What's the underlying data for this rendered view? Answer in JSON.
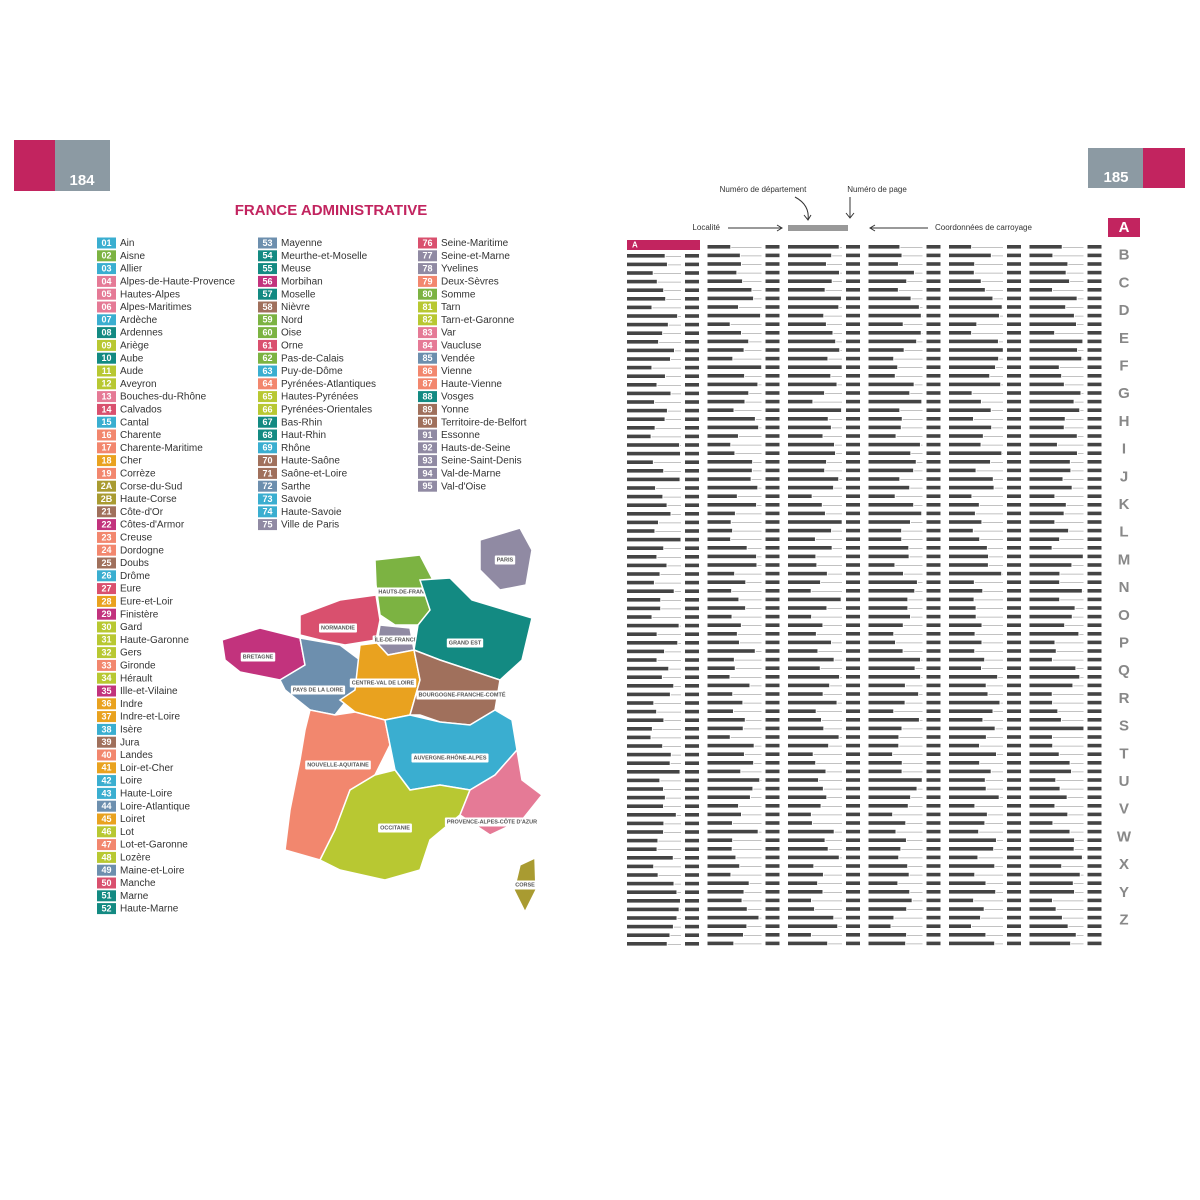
{
  "left_page": {
    "page_number": "184",
    "title": "FRANCE ADMINISTRATIVE",
    "departments": [
      {
        "code": "01",
        "name": "Ain",
        "color": "#3aaed0"
      },
      {
        "code": "02",
        "name": "Aisne",
        "color": "#7cb342"
      },
      {
        "code": "03",
        "name": "Allier",
        "color": "#3aaed0"
      },
      {
        "code": "04",
        "name": "Alpes-de-Haute-Provence",
        "color": "#e57a96"
      },
      {
        "code": "05",
        "name": "Hautes-Alpes",
        "color": "#e57a96"
      },
      {
        "code": "06",
        "name": "Alpes-Maritimes",
        "color": "#e57a96"
      },
      {
        "code": "07",
        "name": "Ardèche",
        "color": "#3aaed0"
      },
      {
        "code": "08",
        "name": "Ardennes",
        "color": "#138a82"
      },
      {
        "code": "09",
        "name": "Ariège",
        "color": "#b8c832"
      },
      {
        "code": "10",
        "name": "Aube",
        "color": "#138a82"
      },
      {
        "code": "11",
        "name": "Aude",
        "color": "#b8c832"
      },
      {
        "code": "12",
        "name": "Aveyron",
        "color": "#b8c832"
      },
      {
        "code": "13",
        "name": "Bouches-du-Rhône",
        "color": "#e57a96"
      },
      {
        "code": "14",
        "name": "Calvados",
        "color": "#d9506e"
      },
      {
        "code": "15",
        "name": "Cantal",
        "color": "#3aaed0"
      },
      {
        "code": "16",
        "name": "Charente",
        "color": "#f2876e"
      },
      {
        "code": "17",
        "name": "Charente-Maritime",
        "color": "#f2876e"
      },
      {
        "code": "18",
        "name": "Cher",
        "color": "#e9a21f"
      },
      {
        "code": "19",
        "name": "Corrèze",
        "color": "#f2876e"
      },
      {
        "code": "2A",
        "name": "Corse-du-Sud",
        "color": "#a99b31"
      },
      {
        "code": "2B",
        "name": "Haute-Corse",
        "color": "#a99b31"
      },
      {
        "code": "21",
        "name": "Côte-d'Or",
        "color": "#a0705c"
      },
      {
        "code": "22",
        "name": "Côtes-d'Armor",
        "color": "#c2337d"
      },
      {
        "code": "23",
        "name": "Creuse",
        "color": "#f2876e"
      },
      {
        "code": "24",
        "name": "Dordogne",
        "color": "#f2876e"
      },
      {
        "code": "25",
        "name": "Doubs",
        "color": "#a0705c"
      },
      {
        "code": "26",
        "name": "Drôme",
        "color": "#3aaed0"
      },
      {
        "code": "27",
        "name": "Eure",
        "color": "#d9506e"
      },
      {
        "code": "28",
        "name": "Eure-et-Loir",
        "color": "#e9a21f"
      },
      {
        "code": "29",
        "name": "Finistère",
        "color": "#c2337d"
      },
      {
        "code": "30",
        "name": "Gard",
        "color": "#b8c832"
      },
      {
        "code": "31",
        "name": "Haute-Garonne",
        "color": "#b8c832"
      },
      {
        "code": "32",
        "name": "Gers",
        "color": "#b8c832"
      },
      {
        "code": "33",
        "name": "Gironde",
        "color": "#f2876e"
      },
      {
        "code": "34",
        "name": "Hérault",
        "color": "#b8c832"
      },
      {
        "code": "35",
        "name": "Ille-et-Vilaine",
        "color": "#c2337d"
      },
      {
        "code": "36",
        "name": "Indre",
        "color": "#e9a21f"
      },
      {
        "code": "37",
        "name": "Indre-et-Loire",
        "color": "#e9a21f"
      },
      {
        "code": "38",
        "name": "Isère",
        "color": "#3aaed0"
      },
      {
        "code": "39",
        "name": "Jura",
        "color": "#a0705c"
      },
      {
        "code": "40",
        "name": "Landes",
        "color": "#f2876e"
      },
      {
        "code": "41",
        "name": "Loir-et-Cher",
        "color": "#e9a21f"
      },
      {
        "code": "42",
        "name": "Loire",
        "color": "#3aaed0"
      },
      {
        "code": "43",
        "name": "Haute-Loire",
        "color": "#3aaed0"
      },
      {
        "code": "44",
        "name": "Loire-Atlantique",
        "color": "#6d8fae"
      },
      {
        "code": "45",
        "name": "Loiret",
        "color": "#e9a21f"
      },
      {
        "code": "46",
        "name": "Lot",
        "color": "#b8c832"
      },
      {
        "code": "47",
        "name": "Lot-et-Garonne",
        "color": "#f2876e"
      },
      {
        "code": "48",
        "name": "Lozère",
        "color": "#b8c832"
      },
      {
        "code": "49",
        "name": "Maine-et-Loire",
        "color": "#6d8fae"
      },
      {
        "code": "50",
        "name": "Manche",
        "color": "#d9506e"
      },
      {
        "code": "51",
        "name": "Marne",
        "color": "#138a82"
      },
      {
        "code": "52",
        "name": "Haute-Marne",
        "color": "#138a82"
      },
      {
        "code": "53",
        "name": "Mayenne",
        "color": "#6d8fae"
      },
      {
        "code": "54",
        "name": "Meurthe-et-Moselle",
        "color": "#138a82"
      },
      {
        "code": "55",
        "name": "Meuse",
        "color": "#138a82"
      },
      {
        "code": "56",
        "name": "Morbihan",
        "color": "#c2337d"
      },
      {
        "code": "57",
        "name": "Moselle",
        "color": "#138a82"
      },
      {
        "code": "58",
        "name": "Nièvre",
        "color": "#a0705c"
      },
      {
        "code": "59",
        "name": "Nord",
        "color": "#7cb342"
      },
      {
        "code": "60",
        "name": "Oise",
        "color": "#7cb342"
      },
      {
        "code": "61",
        "name": "Orne",
        "color": "#d9506e"
      },
      {
        "code": "62",
        "name": "Pas-de-Calais",
        "color": "#7cb342"
      },
      {
        "code": "63",
        "name": "Puy-de-Dôme",
        "color": "#3aaed0"
      },
      {
        "code": "64",
        "name": "Pyrénées-Atlantiques",
        "color": "#f2876e"
      },
      {
        "code": "65",
        "name": "Hautes-Pyrénées",
        "color": "#b8c832"
      },
      {
        "code": "66",
        "name": "Pyrénées-Orientales",
        "color": "#b8c832"
      },
      {
        "code": "67",
        "name": "Bas-Rhin",
        "color": "#138a82"
      },
      {
        "code": "68",
        "name": "Haut-Rhin",
        "color": "#138a82"
      },
      {
        "code": "69",
        "name": "Rhône",
        "color": "#3aaed0"
      },
      {
        "code": "70",
        "name": "Haute-Saône",
        "color": "#a0705c"
      },
      {
        "code": "71",
        "name": "Saône-et-Loire",
        "color": "#a0705c"
      },
      {
        "code": "72",
        "name": "Sarthe",
        "color": "#6d8fae"
      },
      {
        "code": "73",
        "name": "Savoie",
        "color": "#3aaed0"
      },
      {
        "code": "74",
        "name": "Haute-Savoie",
        "color": "#3aaed0"
      },
      {
        "code": "75",
        "name": "Ville de Paris",
        "color": "#908aa3"
      },
      {
        "code": "76",
        "name": "Seine-Maritime",
        "color": "#d9506e"
      },
      {
        "code": "77",
        "name": "Seine-et-Marne",
        "color": "#908aa3"
      },
      {
        "code": "78",
        "name": "Yvelines",
        "color": "#908aa3"
      },
      {
        "code": "79",
        "name": "Deux-Sèvres",
        "color": "#f2876e"
      },
      {
        "code": "80",
        "name": "Somme",
        "color": "#7cb342"
      },
      {
        "code": "81",
        "name": "Tarn",
        "color": "#b8c832"
      },
      {
        "code": "82",
        "name": "Tarn-et-Garonne",
        "color": "#b8c832"
      },
      {
        "code": "83",
        "name": "Var",
        "color": "#e57a96"
      },
      {
        "code": "84",
        "name": "Vaucluse",
        "color": "#e57a96"
      },
      {
        "code": "85",
        "name": "Vendée",
        "color": "#6d8fae"
      },
      {
        "code": "86",
        "name": "Vienne",
        "color": "#f2876e"
      },
      {
        "code": "87",
        "name": "Haute-Vienne",
        "color": "#f2876e"
      },
      {
        "code": "88",
        "name": "Vosges",
        "color": "#138a82"
      },
      {
        "code": "89",
        "name": "Yonne",
        "color": "#a0705c"
      },
      {
        "code": "90",
        "name": "Territoire-de-Belfort",
        "color": "#a0705c"
      },
      {
        "code": "91",
        "name": "Essonne",
        "color": "#908aa3"
      },
      {
        "code": "92",
        "name": "Hauts-de-Seine",
        "color": "#908aa3"
      },
      {
        "code": "93",
        "name": "Seine-Saint-Denis",
        "color": "#908aa3"
      },
      {
        "code": "94",
        "name": "Val-de-Marne",
        "color": "#908aa3"
      },
      {
        "code": "95",
        "name": "Val-d'Oise",
        "color": "#908aa3"
      }
    ]
  },
  "map": {
    "regions": [
      {
        "label": "HAUTS-DE-FRANCE",
        "color": "#7cb342"
      },
      {
        "label": "NORMANDIE",
        "color": "#d9506e"
      },
      {
        "label": "BRETAGNE",
        "color": "#c2337d"
      },
      {
        "label": "ÎLE-DE-FRANCE",
        "color": "#908aa3"
      },
      {
        "label": "GRAND EST",
        "color": "#138a82"
      },
      {
        "label": "PAYS DE LA LOIRE",
        "color": "#6d8fae"
      },
      {
        "label": "CENTRE-VAL DE LOIRE",
        "color": "#e9a21f"
      },
      {
        "label": "BOURGOGNE-FRANCHE-COMTÉ",
        "color": "#a0705c"
      },
      {
        "label": "NOUVELLE-AQUITAINE",
        "color": "#f2876e"
      },
      {
        "label": "AUVERGNE-RHÔNE-ALPES",
        "color": "#3aaed0"
      },
      {
        "label": "OCCITANIE",
        "color": "#b8c832"
      },
      {
        "label": "PROVENCE-ALPES-CÔTE D'AZUR",
        "color": "#e57a96"
      },
      {
        "label": "CORSE",
        "color": "#a99b31"
      },
      {
        "label": "PARIS",
        "color": "#908aa3"
      }
    ]
  },
  "right_page": {
    "page_number": "185",
    "legend": {
      "department_number": "Numéro de département",
      "page_number": "Numéro de page",
      "locality": "Localité",
      "grid_coordinates": "Coordonnées de carroyage"
    },
    "index_header": "A",
    "letters": [
      "A",
      "B",
      "C",
      "D",
      "E",
      "F",
      "G",
      "H",
      "I",
      "J",
      "K",
      "L",
      "M",
      "N",
      "O",
      "P",
      "Q",
      "R",
      "S",
      "T",
      "U",
      "V",
      "W",
      "X",
      "Y",
      "Z"
    ]
  }
}
